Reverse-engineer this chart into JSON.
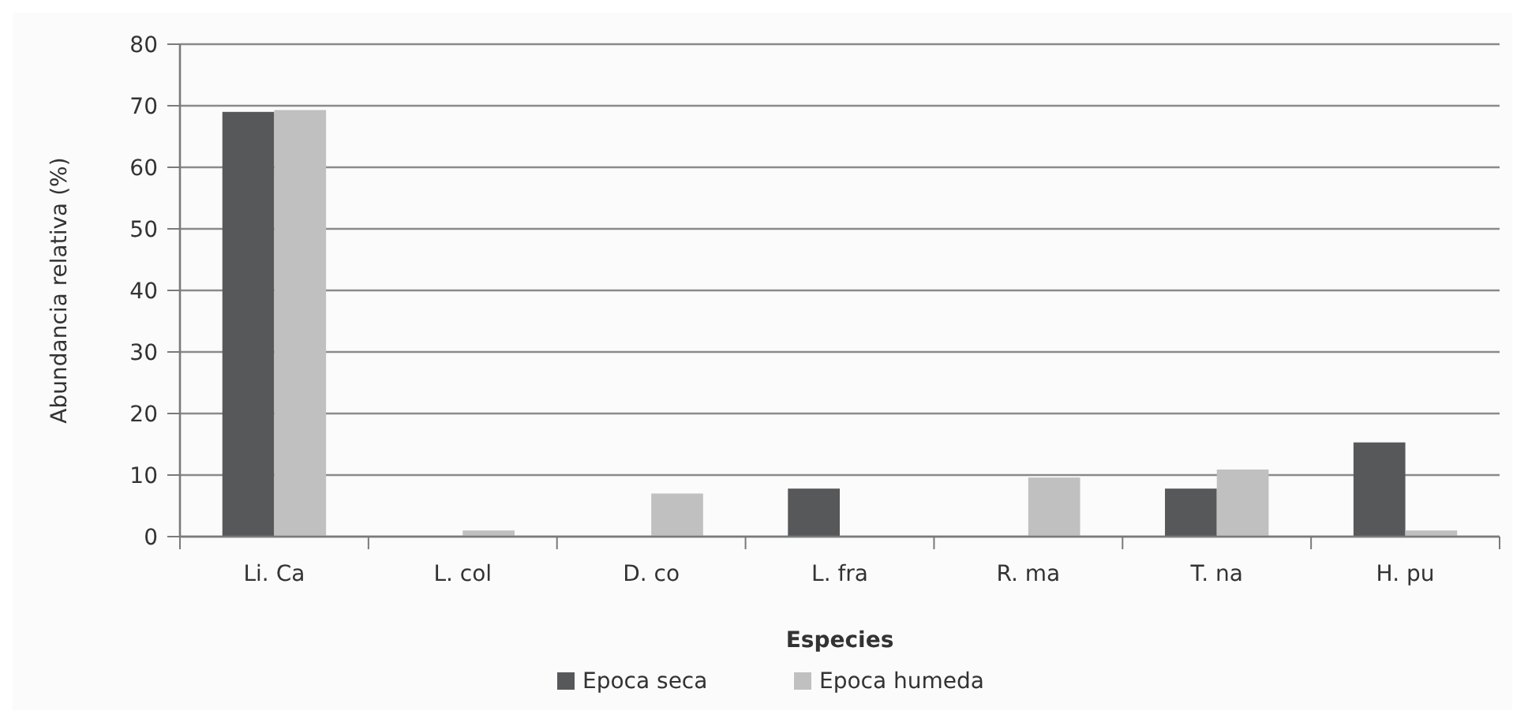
{
  "chart_data": {
    "type": "bar",
    "xlabel": "Especies",
    "ylabel": "Abundancia relativa (%)",
    "categories": [
      "Li. Ca",
      "L. col",
      "D. co",
      "L. fra",
      "R. ma",
      "T. na",
      "H. pu"
    ],
    "series": [
      {
        "name": "Epoca seca",
        "color": "#57585a",
        "values": [
          69,
          0,
          0,
          7.8,
          0,
          7.8,
          15.3
        ]
      },
      {
        "name": "Epoca humeda",
        "color": "#c0c0c0",
        "values": [
          69.3,
          1,
          7,
          0,
          9.6,
          10.9,
          1
        ]
      }
    ],
    "ylim": [
      0,
      80
    ],
    "yticks": [
      0,
      10,
      20,
      30,
      40,
      50,
      60,
      70,
      80
    ],
    "grid": "y",
    "legend": "bottom"
  }
}
